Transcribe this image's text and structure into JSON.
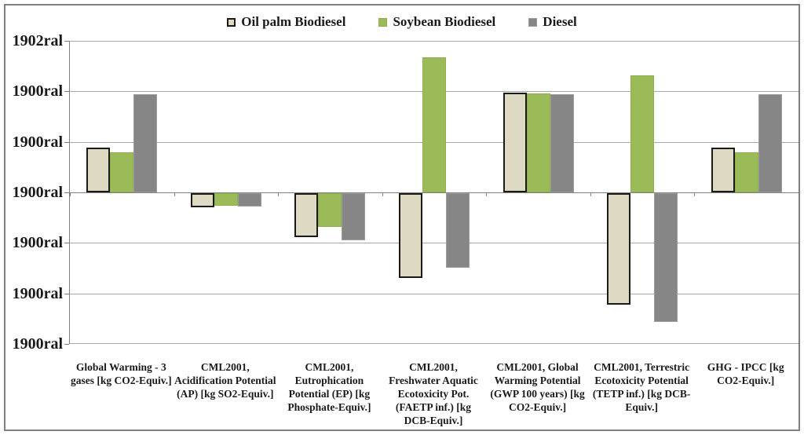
{
  "chart_data": {
    "type": "bar",
    "title": "",
    "legend_position": "top-center",
    "grid": "horizontal",
    "yticks": [
      "1902ral",
      "1900ral",
      "1900ral",
      "1900ral",
      "1900ral",
      "1900ral",
      "1900ral"
    ],
    "ylim": [
      -3,
      3
    ],
    "zero_tick_index": 3,
    "value_unit": "gridline-intervals relative to the zero baseline (axis labels rendered corrupted in source)",
    "categories": [
      "Global Warming - 3\ngases [kg CO2-Equiv.]",
      "CML2001,\nAcidification Potential\n(AP) [kg SO2-Equiv.]",
      "CML2001,\nEutrophication\nPotential (EP) [kg\nPhosphate-Equiv.]",
      "CML2001,\nFreshwater Aquatic\nEcotoxicity Pot.\n(FAETP inf.) [kg\nDCB-Equiv.]",
      "CML2001, Global\nWarming Potential\n(GWP 100 years) [kg\nCO2-Equiv.]",
      "CML2001, Terrestric\nEcotoxicity Potential\n(TETP inf.) [kg DCB-\nEquiv.]",
      "GHG - IPCC [kg\nCO2-Equiv.]"
    ],
    "series": [
      {
        "name": "Oil palm Biodiesel",
        "color": "#ded9c3",
        "border_color": "#1a1a1a",
        "values": [
          0.88,
          -0.28,
          -0.87,
          -1.68,
          1.98,
          -2.2,
          0.88
        ]
      },
      {
        "name": "Soybean Biodiesel",
        "color": "#9bbb59",
        "border_color": "#8fae4e",
        "values": [
          0.79,
          -0.25,
          -0.67,
          2.68,
          1.96,
          2.32,
          0.79
        ]
      },
      {
        "name": "Diesel",
        "color": "#868686",
        "border_color": "#9c9c9c",
        "values": [
          1.95,
          -0.26,
          -0.94,
          -1.48,
          1.94,
          -2.55,
          1.95
        ]
      }
    ]
  },
  "colors": {
    "background": "#ffffff",
    "frame": "#7f7f7f",
    "gridline": "#a8a8a8",
    "axis": "#808080",
    "text": "#1a1a1a"
  }
}
